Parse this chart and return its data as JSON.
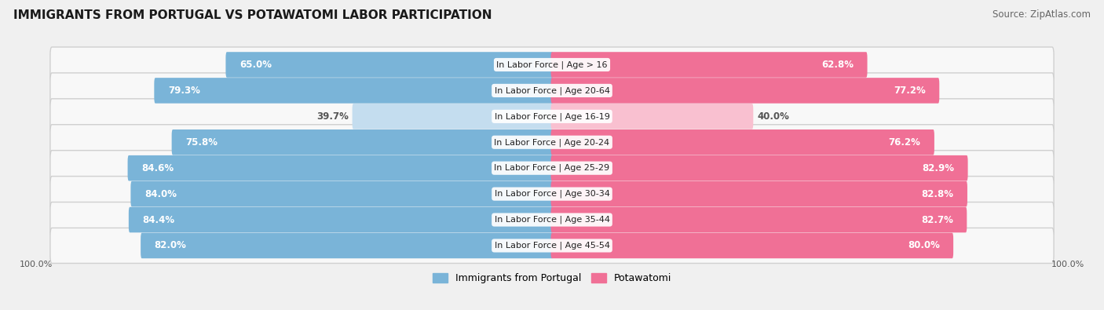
{
  "title": "IMMIGRANTS FROM PORTUGAL VS POTAWATOMI LABOR PARTICIPATION",
  "source": "Source: ZipAtlas.com",
  "categories": [
    "In Labor Force | Age > 16",
    "In Labor Force | Age 20-64",
    "In Labor Force | Age 16-19",
    "In Labor Force | Age 20-24",
    "In Labor Force | Age 25-29",
    "In Labor Force | Age 30-34",
    "In Labor Force | Age 35-44",
    "In Labor Force | Age 45-54"
  ],
  "portugal_values": [
    65.0,
    79.3,
    39.7,
    75.8,
    84.6,
    84.0,
    84.4,
    82.0
  ],
  "potawatomi_values": [
    62.8,
    77.2,
    40.0,
    76.2,
    82.9,
    82.8,
    82.7,
    80.0
  ],
  "portugal_color": "#7ab4d8",
  "potawatomi_color": "#f07096",
  "portugal_color_light": "#c4ddef",
  "potawatomi_color_light": "#f9c0d0",
  "row_bg_color": "#e8e8e8",
  "row_inner_color": "#f8f8f8",
  "background_color": "#f0f0f0",
  "axis_label_left": "100.0%",
  "axis_label_right": "100.0%",
  "legend_label_portugal": "Immigrants from Portugal",
  "legend_label_potawatomi": "Potawatomi",
  "max_val": 100.0,
  "title_fontsize": 11,
  "label_fontsize": 8.5,
  "cat_fontsize": 8.0,
  "source_fontsize": 8.5
}
